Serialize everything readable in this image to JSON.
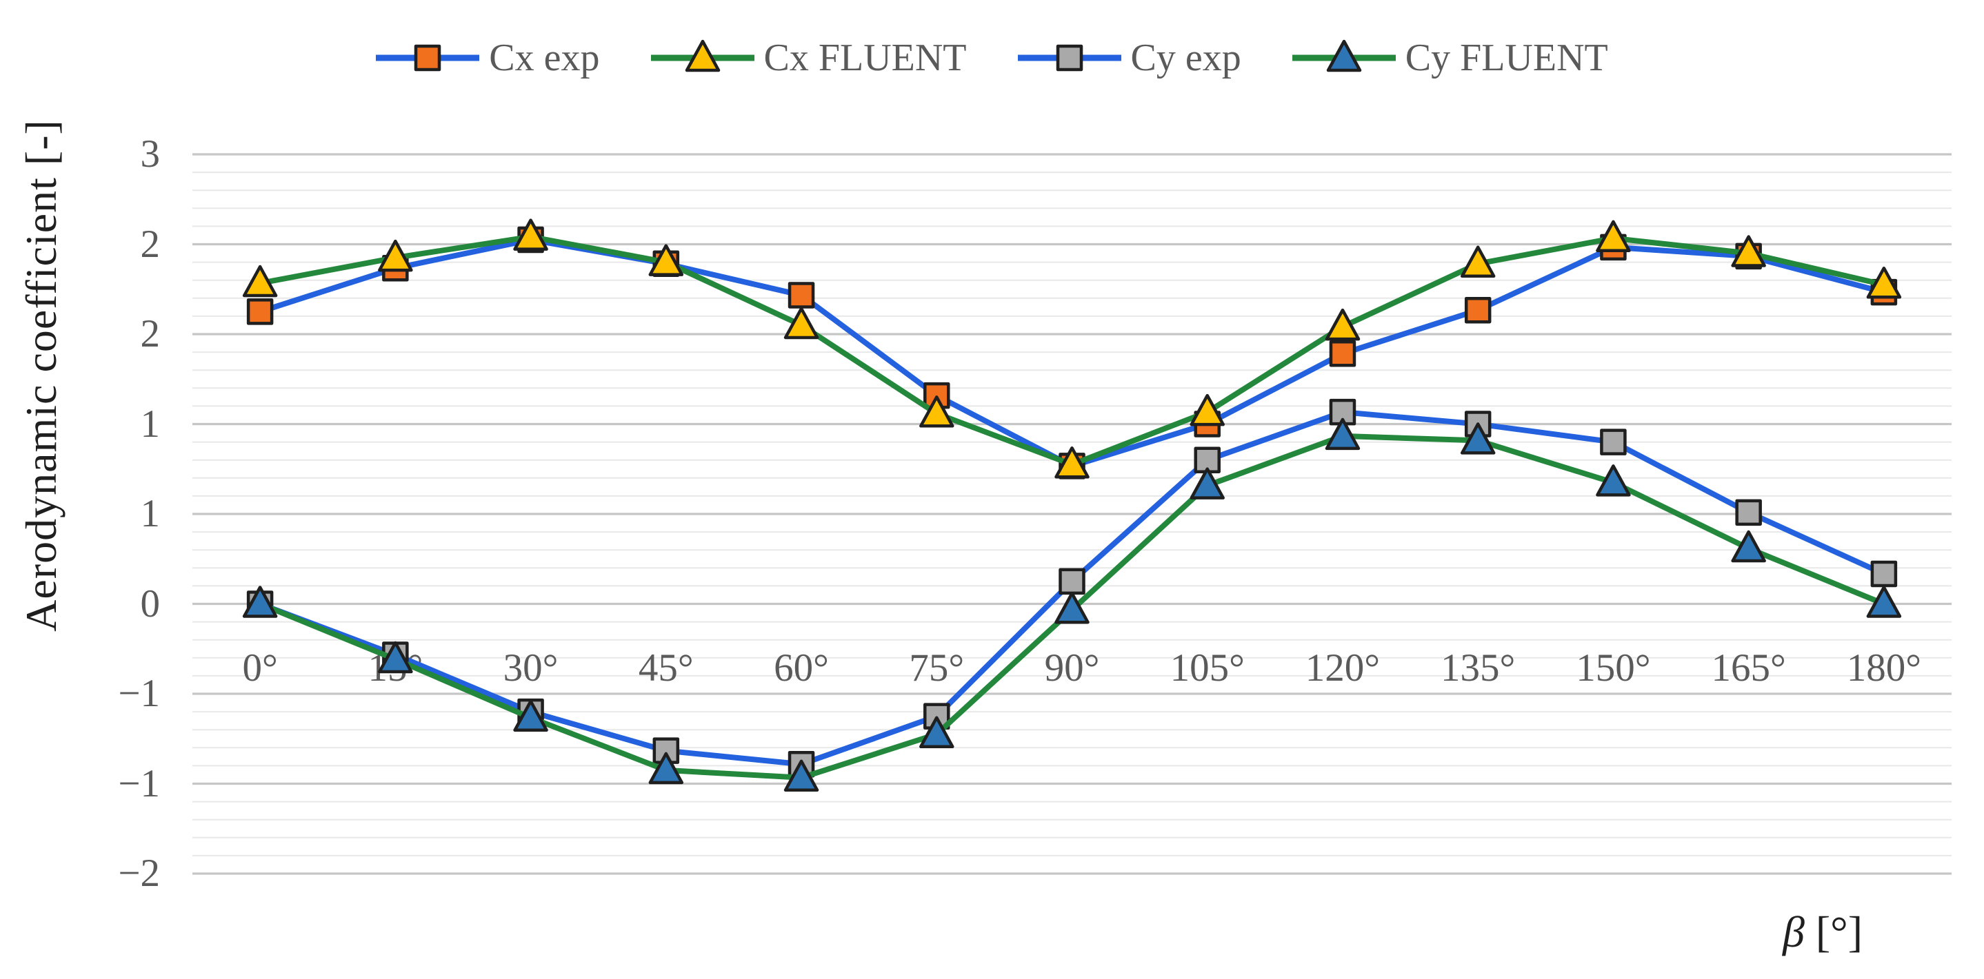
{
  "figure": {
    "y_axis_title": "Aerodynamic coefficient [-]",
    "x_axis_symbol": "β",
    "x_axis_unit": " [°]"
  },
  "colors": {
    "exp_line_blue": "#2361DE",
    "fluent_line_green": "#23873C",
    "cx_exp_marker_orange": "#F0701E",
    "cx_fluent_marker_gold": "#FFC000",
    "cy_exp_marker_gray": "#A9A9A9",
    "cy_fluent_marker_blue": "#2E75B6",
    "marker_outline": "#1F1F1F",
    "major_gridline": "#C6C6C6",
    "minor_gridline": "#E8E8E8",
    "tick_text_gray": "#5A5A5A",
    "title_text_black": "#1F1F1F"
  },
  "chart_data": {
    "type": "line",
    "title": "",
    "xlabel": "β [°]",
    "ylabel": "Aerodynamic coefficient [-]",
    "legend_position": "top",
    "grid": "horizontal, major + 4 minor lines per major",
    "categories": [
      "0°",
      "15°",
      "30°",
      "45°",
      "60°",
      "75°",
      "90°",
      "105°",
      "120°",
      "135°",
      "150°",
      "165°",
      "180°"
    ],
    "y_axis": {
      "max": 3.0,
      "min": -1.8,
      "major_unit": 0.6,
      "minor_unit": 0.12,
      "tick_labels": [
        "3",
        "2",
        "2",
        "1",
        "1",
        "0",
        "−1",
        "−1",
        "−2"
      ]
    },
    "series": [
      {
        "name": "Cx exp",
        "line_color": "#2361DE",
        "marker_shape": "square",
        "marker_fill": "#F0701E",
        "values": [
          1.95,
          2.24,
          2.43,
          2.27,
          2.06,
          1.39,
          0.92,
          1.2,
          1.67,
          1.96,
          2.38,
          2.32,
          2.08
        ]
      },
      {
        "name": "Cx FLUENT",
        "line_color": "#23873C",
        "marker_shape": "triangle",
        "marker_fill": "#FFC000",
        "values": [
          2.14,
          2.31,
          2.45,
          2.28,
          1.86,
          1.27,
          0.93,
          1.28,
          1.85,
          2.27,
          2.44,
          2.34,
          2.13
        ]
      },
      {
        "name": "Cy exp",
        "line_color": "#2361DE",
        "marker_shape": "square",
        "marker_fill": "#A9A9A9",
        "values": [
          0.0,
          -0.34,
          -0.72,
          -0.98,
          -1.07,
          -0.75,
          0.15,
          0.96,
          1.28,
          1.2,
          1.08,
          0.61,
          0.2
        ]
      },
      {
        "name": "Cy FLUENT",
        "line_color": "#23873C",
        "marker_shape": "triangle",
        "marker_fill": "#2E75B6",
        "values": [
          0.0,
          -0.37,
          -0.76,
          -1.11,
          -1.16,
          -0.87,
          -0.04,
          0.79,
          1.12,
          1.09,
          0.81,
          0.37,
          0.0
        ]
      }
    ]
  }
}
